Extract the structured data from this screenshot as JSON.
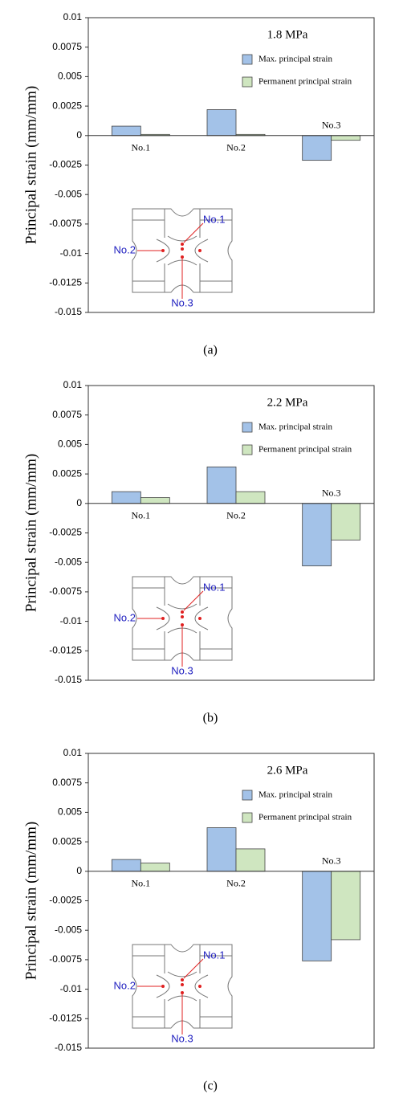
{
  "chart_data": [
    {
      "type": "bar",
      "title": "1.8 MPa",
      "caption": "(a)",
      "y_label": "Principal strain (mm/mm)",
      "categories": [
        "No.1",
        "No.2",
        "No.3"
      ],
      "series": [
        {
          "name": "Max. principal strain",
          "color": "#a3c2e8",
          "values": [
            0.0008,
            0.0022,
            -0.0021
          ]
        },
        {
          "name": "Permanent principal strain",
          "color": "#cfe6c0",
          "values": [
            0.0001,
            0.0001,
            -0.0004
          ]
        }
      ],
      "ylim": [
        -0.015,
        0.01
      ],
      "yticks": [
        0.01,
        0.0075,
        0.005,
        0.0025,
        0,
        -0.0025,
        -0.005,
        -0.0075,
        -0.01,
        -0.0125,
        -0.015
      ],
      "annotations": [
        "No.1",
        "No.2",
        "No.3"
      ]
    },
    {
      "type": "bar",
      "title": "2.2 MPa",
      "caption": "(b)",
      "y_label": "Principal strain (mm/mm)",
      "categories": [
        "No.1",
        "No.2",
        "No.3"
      ],
      "series": [
        {
          "name": "Max. principal strain",
          "color": "#a3c2e8",
          "values": [
            0.001,
            0.0031,
            -0.0053
          ]
        },
        {
          "name": "Permanent principal strain",
          "color": "#cfe6c0",
          "values": [
            0.0005,
            0.001,
            -0.0031
          ]
        }
      ],
      "ylim": [
        -0.015,
        0.01
      ],
      "yticks": [
        0.01,
        0.0075,
        0.005,
        0.0025,
        0,
        -0.0025,
        -0.005,
        -0.0075,
        -0.01,
        -0.0125,
        -0.015
      ],
      "annotations": [
        "No.1",
        "No.2",
        "No.3"
      ]
    },
    {
      "type": "bar",
      "title": "2.6 MPa",
      "caption": "(c)",
      "y_label": "Principal strain (mm/mm)",
      "categories": [
        "No.1",
        "No.2",
        "No.3"
      ],
      "series": [
        {
          "name": "Max. principal strain",
          "color": "#a3c2e8",
          "values": [
            0.001,
            0.0037,
            -0.0076
          ]
        },
        {
          "name": "Permanent principal strain",
          "color": "#cfe6c0",
          "values": [
            0.0007,
            0.0019,
            -0.0058
          ]
        }
      ],
      "ylim": [
        -0.015,
        0.01
      ],
      "yticks": [
        0.01,
        0.0075,
        0.005,
        0.0025,
        0,
        -0.0025,
        -0.005,
        -0.0075,
        -0.01,
        -0.0125,
        -0.015
      ],
      "annotations": [
        "No.1",
        "No.2",
        "No.3"
      ]
    }
  ]
}
